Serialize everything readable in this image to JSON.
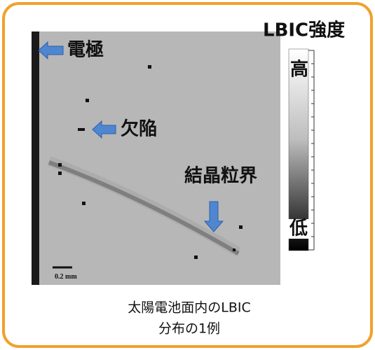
{
  "labels": {
    "electrode": "電極",
    "defect": "欠陥",
    "grain_boundary": "結晶粒界",
    "scale_bar": "0.2 mm"
  },
  "colorbar": {
    "title": "LBIC強度",
    "high": "高",
    "low": "低"
  },
  "caption": {
    "line1": "太陽電池面内のLBIC",
    "line2": "分布の1例"
  }
}
